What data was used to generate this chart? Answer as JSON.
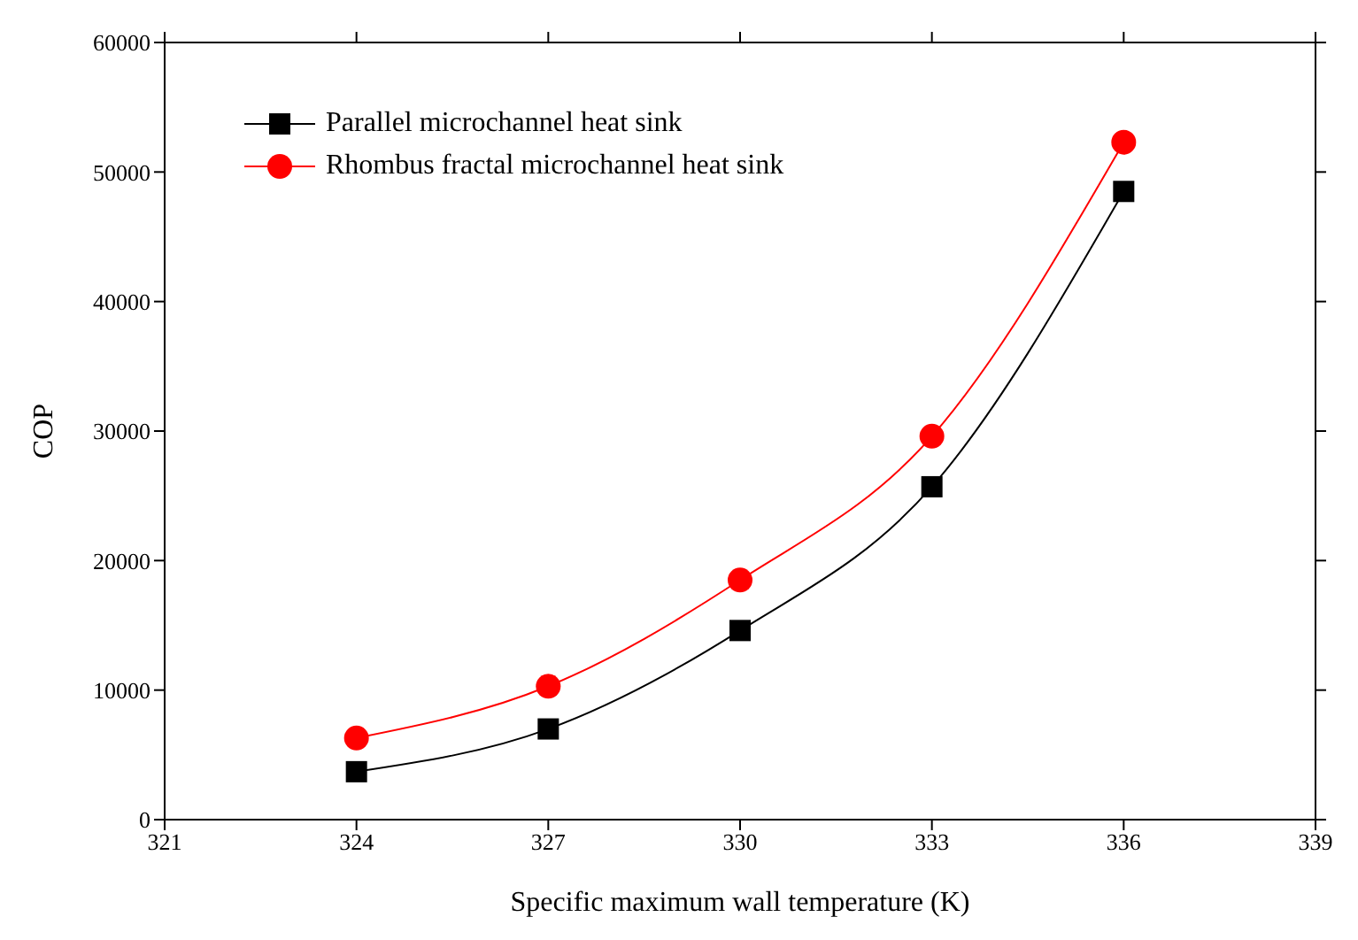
{
  "chart_data": {
    "type": "line",
    "xlabel": "Specific maximum wall temperature (K)",
    "ylabel": "COP",
    "x": [
      324,
      327,
      330,
      333,
      336
    ],
    "series": [
      {
        "name": "Parallel microchannel heat sink",
        "color": "#000000",
        "marker": "square",
        "values": [
          3700,
          7000,
          14600,
          25700,
          48500
        ]
      },
      {
        "name": "Rhombus fractal microchannel heat sink",
        "color": "#ff0000",
        "marker": "circle",
        "values": [
          6300,
          10300,
          18500,
          29600,
          52300
        ]
      }
    ],
    "xlim": [
      321,
      339
    ],
    "xticks": [
      321,
      324,
      327,
      330,
      333,
      336,
      339
    ],
    "ylim": [
      0,
      60000
    ],
    "yticks": [
      0,
      10000,
      20000,
      30000,
      40000,
      50000,
      60000
    ],
    "grid": false,
    "legend": "top left",
    "line_style": "solid"
  }
}
